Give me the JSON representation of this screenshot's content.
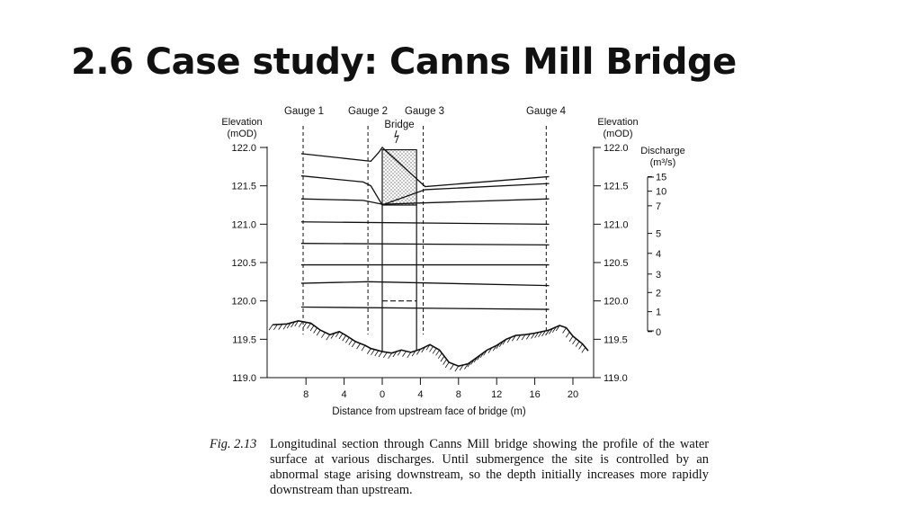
{
  "slide": {
    "title": "2.6 Case study: Canns Mill Bridge"
  },
  "figure": {
    "caption_label": "Fig. 2.13",
    "caption_text": "Longitudinal section through Canns Mill bridge showing the profile of the water surface at various discharges. Until submergence the site is controlled by an abnormal stage arising downstream, so the depth initially increases more rapidly downstream than upstream.",
    "gauges": [
      "Gauge 1",
      "Gauge 2",
      "Gauge 3",
      "Gauge 4"
    ],
    "bridge_label": "Bridge",
    "left_axis_title": [
      "Elevation",
      "(mOD)"
    ],
    "right_axis_title": [
      "Elevation",
      "(mOD)"
    ],
    "discharge_title": [
      "Discharge",
      "(m³/s)"
    ],
    "xlabel": "Distance from upstream face of bridge (m)"
  },
  "chart_data": {
    "type": "line",
    "title": "",
    "xlabel": "Distance from upstream face of bridge (m)",
    "ylabel": "Elevation (mOD)",
    "ylim": [
      119.0,
      122.0
    ],
    "yticks": [
      119.0,
      119.5,
      120.0,
      120.5,
      121.0,
      121.5,
      122.0
    ],
    "ytick_labels": [
      "119.0",
      "119.5",
      "120.0",
      "120.5",
      "121.0",
      "121.5",
      "122.0"
    ],
    "xticks": [
      -8,
      -4,
      0,
      4,
      8,
      12,
      16,
      20
    ],
    "xtick_labels": [
      "8",
      "4",
      "0",
      "4",
      "8",
      "12",
      "16",
      "20"
    ],
    "gauge_positions_m": [
      -8.3,
      -1.5,
      4.3,
      17.2
    ],
    "bridge_span_m": [
      0,
      3.6
    ],
    "bridge_deck_top": 121.97,
    "bridge_soffit": 121.25,
    "discharge_ticks": [
      {
        "label": "15",
        "elev": 121.62
      },
      {
        "label": "10",
        "elev": 121.43
      },
      {
        "label": "7",
        "elev": 121.24
      },
      {
        "label": "5",
        "elev": 120.88
      },
      {
        "label": "4",
        "elev": 120.62
      },
      {
        "label": "3",
        "elev": 120.35
      },
      {
        "label": "2",
        "elev": 120.11
      },
      {
        "label": "1",
        "elev": 119.86
      },
      {
        "label": "0",
        "elev": 119.6
      }
    ],
    "series": [
      {
        "discharge": "0",
        "points": [
          [
            -8.5,
            119.92
          ],
          [
            17.5,
            119.89
          ]
        ]
      },
      {
        "discharge": "1",
        "points": [
          [
            -8.5,
            120.23
          ],
          [
            -1.5,
            120.25
          ],
          [
            17.5,
            120.2
          ]
        ]
      },
      {
        "discharge": "2",
        "points": [
          [
            -8.5,
            120.47
          ],
          [
            17.5,
            120.47
          ]
        ]
      },
      {
        "discharge": "3",
        "points": [
          [
            -8.5,
            120.75
          ],
          [
            17.5,
            120.73
          ]
        ]
      },
      {
        "discharge": "4",
        "points": [
          [
            -8.5,
            121.03
          ],
          [
            17.5,
            121.0
          ]
        ]
      },
      {
        "discharge": "5",
        "points": [
          [
            -8.5,
            121.33
          ],
          [
            -2,
            121.31
          ],
          [
            0,
            121.26
          ],
          [
            5,
            121.28
          ],
          [
            17.5,
            121.33
          ]
        ]
      },
      {
        "discharge": "7",
        "points": [
          [
            -8.5,
            121.63
          ],
          [
            -2,
            121.55
          ],
          [
            -1.2,
            121.5
          ],
          [
            0,
            121.25
          ],
          [
            4.5,
            121.45
          ],
          [
            17.5,
            121.53
          ]
        ]
      },
      {
        "discharge": "10",
        "points": [
          [
            -8.5,
            121.92
          ],
          [
            -1.2,
            121.82
          ],
          [
            -0.4,
            121.93
          ],
          [
            0,
            122.0
          ],
          [
            4.5,
            121.49
          ],
          [
            17.5,
            121.62
          ]
        ]
      }
    ],
    "dashed_level": {
      "x": [
        0,
        3.6
      ],
      "elev": 120.0
    },
    "bed_profile": [
      [
        -11.5,
        119.69
      ],
      [
        -10,
        119.7
      ],
      [
        -8.8,
        119.74
      ],
      [
        -7.5,
        119.71
      ],
      [
        -6.5,
        119.62
      ],
      [
        -5.5,
        119.56
      ],
      [
        -4.5,
        119.6
      ],
      [
        -3.8,
        119.55
      ],
      [
        -2.8,
        119.47
      ],
      [
        -1.8,
        119.42
      ],
      [
        -1.2,
        119.38
      ],
      [
        0,
        119.34
      ],
      [
        1,
        119.32
      ],
      [
        2,
        119.36
      ],
      [
        3,
        119.33
      ],
      [
        4,
        119.37
      ],
      [
        5,
        119.43
      ],
      [
        6,
        119.36
      ],
      [
        7,
        119.2
      ],
      [
        8,
        119.15
      ],
      [
        9,
        119.18
      ],
      [
        10,
        119.27
      ],
      [
        11,
        119.36
      ],
      [
        12,
        119.42
      ],
      [
        13,
        119.5
      ],
      [
        14,
        119.55
      ],
      [
        15,
        119.56
      ],
      [
        16,
        119.58
      ],
      [
        17.5,
        119.62
      ],
      [
        18.6,
        119.68
      ],
      [
        19.3,
        119.65
      ],
      [
        20,
        119.54
      ],
      [
        21,
        119.44
      ],
      [
        21.6,
        119.35
      ]
    ]
  }
}
